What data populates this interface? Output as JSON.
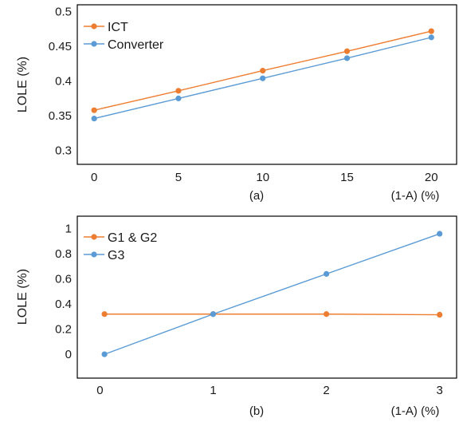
{
  "chart_data": [
    {
      "type": "line",
      "caption": "(a)",
      "xlabel": "(1-A) (%)",
      "ylabel": "LOLE (%)",
      "xlim": [
        -1,
        21.5
      ],
      "ylim": [
        0.28,
        0.51
      ],
      "xticks": [
        "0",
        "5",
        "10",
        "15",
        "20"
      ],
      "yticks": [
        "0.3",
        "0.35",
        "0.4",
        "0.45",
        "0.5"
      ],
      "legend": "top-left",
      "series": [
        {
          "name": "ICT",
          "color": "#ED7D31",
          "x": [
            0,
            5,
            10,
            15,
            20
          ],
          "values": [
            0.358,
            0.386,
            0.415,
            0.443,
            0.472
          ]
        },
        {
          "name": "Converter",
          "color": "#5B9BD5",
          "x": [
            0,
            5,
            10,
            15,
            20
          ],
          "values": [
            0.346,
            0.375,
            0.404,
            0.433,
            0.463
          ]
        }
      ]
    },
    {
      "type": "line",
      "caption": "(b)",
      "xlabel": "(1-A) (%)",
      "ylabel": "LOLE (%)",
      "xlim": [
        -0.2,
        3.15
      ],
      "ylim": [
        -0.19,
        1.1
      ],
      "xticks": [
        "0",
        "1",
        "2",
        "3"
      ],
      "yticks": [
        "0",
        "0.2",
        "0.4",
        "0.6",
        "0.8",
        "1"
      ],
      "legend": "top-left",
      "series": [
        {
          "name": "G1 & G2",
          "color": "#ED7D31",
          "x": [
            0.04,
            1,
            2,
            3
          ],
          "values": [
            0.32,
            0.32,
            0.32,
            0.315
          ]
        },
        {
          "name": "G3",
          "color": "#5B9BD5",
          "x": [
            0.04,
            1,
            2,
            3
          ],
          "values": [
            0.0,
            0.32,
            0.64,
            0.96
          ]
        }
      ]
    }
  ]
}
